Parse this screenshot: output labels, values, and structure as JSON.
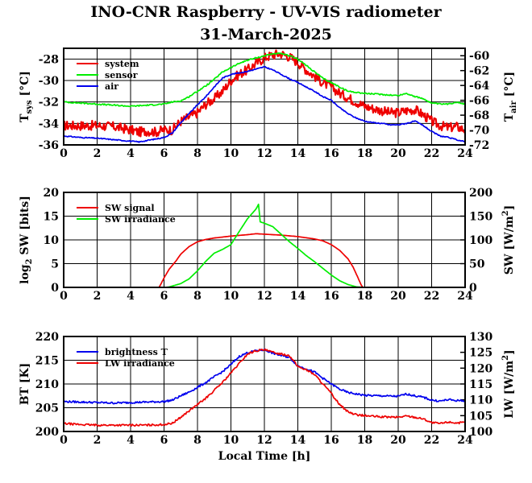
{
  "title": "INO-CNR Raspberry - UV-VIS radiometer",
  "date": "31-March-2025",
  "xlabel": "Local Time [h]",
  "x_ticks": [
    "0",
    "2",
    "4",
    "6",
    "8",
    "10",
    "12",
    "14",
    "16",
    "18",
    "20",
    "22",
    "24"
  ],
  "chart_data": [
    {
      "type": "line",
      "panel": "temperatures",
      "ylabel_left": {
        "main": "T",
        "sub": "sys",
        "unit": " [°C]"
      },
      "ylabel_right": {
        "main": "T",
        "sub": "air",
        "unit": " [°C]"
      },
      "xlim": [
        0,
        24
      ],
      "ylim_left": [
        -36,
        -27
      ],
      "ylim_right": [
        -72,
        -59
      ],
      "yticks_left": [
        "-28",
        "-30",
        "-32",
        "-34",
        "-36"
      ],
      "yticks_right": [
        "-60",
        "-62",
        "-64",
        "-66",
        "-68",
        "-70",
        "-72"
      ],
      "grid": true,
      "legend": "top-left",
      "series": [
        {
          "name": "system",
          "color": "#ee0000",
          "axis": "left",
          "noise": 0.45,
          "x": [
            0,
            1,
            2,
            3,
            4,
            4.5,
            5,
            5.5,
            6,
            6.5,
            7,
            7.5,
            8,
            8.5,
            9,
            9.5,
            10,
            10.5,
            11,
            11.5,
            12,
            12.5,
            13,
            13.5,
            14,
            14.5,
            15,
            15.5,
            16,
            16.5,
            17,
            17.5,
            18,
            18.5,
            19,
            19.5,
            20,
            20.5,
            21,
            21.5,
            22,
            22.5,
            23,
            23.5,
            24
          ],
          "y": [
            -34.2,
            -34.2,
            -34.2,
            -34.3,
            -34.6,
            -34.8,
            -34.7,
            -34.8,
            -34.6,
            -34.6,
            -33.8,
            -33.4,
            -33.0,
            -32.2,
            -31.7,
            -31.0,
            -30.0,
            -29.4,
            -29.0,
            -28.4,
            -27.9,
            -27.6,
            -27.5,
            -27.8,
            -28.3,
            -29.0,
            -29.6,
            -30.2,
            -30.6,
            -31.2,
            -31.6,
            -32.0,
            -32.4,
            -32.6,
            -32.8,
            -33.0,
            -33.0,
            -32.8,
            -32.7,
            -33.2,
            -33.8,
            -34.2,
            -34.4,
            -34.3,
            -34.6
          ]
        },
        {
          "name": "sensor",
          "color": "#00ee00",
          "axis": "left",
          "noise": 0.06,
          "x": [
            0,
            1,
            2,
            3,
            4,
            5,
            6,
            6.5,
            7,
            7.5,
            8,
            8.5,
            9,
            9.5,
            10,
            10.5,
            11,
            11.5,
            12,
            12.5,
            13,
            13.5,
            14,
            14.5,
            15,
            15.5,
            16,
            16.5,
            17,
            17.5,
            18,
            19,
            20,
            20.5,
            21,
            21.5,
            22,
            22.5,
            23,
            23.5,
            24
          ],
          "y": [
            -32.0,
            -32.1,
            -32.2,
            -32.3,
            -32.4,
            -32.3,
            -32.2,
            -32.0,
            -31.9,
            -31.5,
            -31.0,
            -30.5,
            -29.9,
            -29.2,
            -28.8,
            -28.4,
            -28.1,
            -27.9,
            -27.7,
            -27.5,
            -27.5,
            -27.7,
            -28.0,
            -28.6,
            -29.2,
            -29.8,
            -30.2,
            -30.6,
            -31.0,
            -31.1,
            -31.2,
            -31.3,
            -31.4,
            -31.2,
            -31.5,
            -31.7,
            -32.1,
            -32.2,
            -32.2,
            -32.0,
            -32.2
          ]
        },
        {
          "name": "air",
          "color": "#0000ee",
          "axis": "right",
          "noise": 0.07,
          "x": [
            0,
            1,
            2,
            3,
            4,
            4.5,
            5,
            5.5,
            6,
            6.5,
            7,
            7.5,
            8,
            8.5,
            9,
            9.5,
            10,
            10.5,
            11,
            11.5,
            12,
            12.5,
            13,
            13.5,
            14,
            14.5,
            15,
            15.5,
            16,
            16.5,
            17,
            17.5,
            18,
            18.5,
            19,
            19.5,
            20,
            20.5,
            21,
            21.5,
            22,
            22.5,
            23,
            23.5,
            24
          ],
          "y": [
            -70.8,
            -71.0,
            -71.1,
            -71.3,
            -71.5,
            -71.6,
            -71.4,
            -71.2,
            -71.0,
            -70.4,
            -69.0,
            -67.8,
            -66.6,
            -65.5,
            -64.2,
            -63.0,
            -62.5,
            -62.3,
            -62.1,
            -61.8,
            -61.5,
            -61.9,
            -62.5,
            -63.1,
            -63.6,
            -64.2,
            -64.8,
            -65.5,
            -66.0,
            -67.0,
            -67.8,
            -68.4,
            -68.8,
            -69.0,
            -69.1,
            -69.3,
            -69.3,
            -69.1,
            -68.8,
            -69.4,
            -70.2,
            -70.8,
            -71.0,
            -71.3,
            -71.6
          ]
        }
      ]
    },
    {
      "type": "line",
      "panel": "shortwave",
      "ylabel_left": {
        "main": "log",
        "sub": "2",
        "unit": " SW [bits]"
      },
      "ylabel_right": {
        "main": "SW [W/m",
        "sup": "2",
        "unit": "]"
      },
      "xlim": [
        0,
        24
      ],
      "ylim_left": [
        0,
        20
      ],
      "ylim_right": [
        0,
        200
      ],
      "yticks_left": [
        "20",
        "15",
        "10",
        "5",
        "0"
      ],
      "yticks_right": [
        "200",
        "150",
        "100",
        "50",
        "0"
      ],
      "grid": true,
      "legend": "top-left",
      "series": [
        {
          "name": "SW signal",
          "color": "#ee0000",
          "axis": "left",
          "noise": 0,
          "x": [
            0,
            5.7,
            5.8,
            6,
            6.3,
            6.7,
            7,
            7.5,
            8,
            8.5,
            9,
            10,
            11,
            11.5,
            12,
            13,
            14,
            15,
            15.5,
            16,
            16.5,
            17,
            17.3,
            17.6,
            17.8,
            17.9,
            24
          ],
          "y": [
            0,
            0,
            0.6,
            2.0,
            3.8,
            5.5,
            7.0,
            8.6,
            9.6,
            10.1,
            10.4,
            10.8,
            11.1,
            11.3,
            11.2,
            11.0,
            10.7,
            10.2,
            9.8,
            9.0,
            7.8,
            6.0,
            4.3,
            2.0,
            0.4,
            0,
            0
          ]
        },
        {
          "name": "SW irradiance",
          "color": "#00ee00",
          "axis": "right",
          "noise": 0,
          "x": [
            0,
            6.0,
            6.3,
            7,
            7.5,
            8,
            8.5,
            9,
            9.5,
            10,
            10.5,
            11,
            11.5,
            11.65,
            11.75,
            12,
            12.5,
            13,
            13.5,
            14,
            14.5,
            15,
            15.5,
            16,
            16.5,
            17,
            17.5,
            18,
            24
          ],
          "y": [
            0,
            0,
            0.8,
            8,
            18,
            35,
            55,
            72,
            80,
            90,
            118,
            145,
            165,
            175,
            138,
            135,
            128,
            112,
            96,
            82,
            67,
            54,
            40,
            26,
            14,
            6,
            1,
            0,
            0
          ]
        }
      ]
    },
    {
      "type": "line",
      "panel": "longwave",
      "ylabel_left": {
        "main": "BT [K]"
      },
      "ylabel_right": {
        "main": "LW [W/m",
        "sup": "2",
        "unit": "]"
      },
      "xlim": [
        0,
        24
      ],
      "ylim_left": [
        200,
        220
      ],
      "ylim_right": [
        100,
        130
      ],
      "yticks_left": [
        "220",
        "215",
        "210",
        "205",
        "200"
      ],
      "yticks_right": [
        "130",
        "125",
        "120",
        "115",
        "110",
        "105",
        "100"
      ],
      "grid": true,
      "legend": "top-left",
      "series": [
        {
          "name": "brightness T",
          "color": "#0000ee",
          "axis": "left",
          "noise": 0.2,
          "x": [
            0,
            1,
            2,
            3,
            4,
            5,
            6,
            6.5,
            7,
            7.5,
            8,
            8.5,
            9,
            9.5,
            10,
            10.5,
            11,
            11.5,
            12,
            12.5,
            13,
            13.5,
            14,
            14.5,
            15,
            15.5,
            16,
            16.5,
            17,
            17.5,
            18,
            19,
            20,
            20.5,
            21,
            21.5,
            22,
            22.5,
            23,
            23.5,
            24
          ],
          "y": [
            206.3,
            206.2,
            206.1,
            206.0,
            206.1,
            206.2,
            206.3,
            206.6,
            207.5,
            208.3,
            209.3,
            210.3,
            211.5,
            212.6,
            214.1,
            215.8,
            216.6,
            217.0,
            217.2,
            216.5,
            216.0,
            215.6,
            213.8,
            213.2,
            212.5,
            211.2,
            210.0,
            208.9,
            208.2,
            207.9,
            207.6,
            207.5,
            207.4,
            207.9,
            207.5,
            207.2,
            206.6,
            206.4,
            206.7,
            206.5,
            206.5
          ]
        },
        {
          "name": "LW irradiance",
          "color": "#ee0000",
          "axis": "right",
          "noise": 0.3,
          "x": [
            0,
            1,
            2,
            3,
            4,
            5,
            6,
            6.5,
            7,
            7.5,
            8,
            8.5,
            9,
            9.5,
            10,
            10.5,
            11,
            11.5,
            12,
            12.5,
            13,
            13.5,
            14,
            14.5,
            15,
            15.5,
            16,
            16.5,
            17,
            17.5,
            18,
            19,
            20,
            20.5,
            21,
            21.5,
            22,
            22.5,
            23,
            23.5,
            24
          ],
          "y": [
            102.5,
            102.2,
            102.0,
            102.0,
            102.0,
            102.0,
            102.2,
            102.6,
            104.5,
            106.5,
            108.5,
            110.5,
            113.0,
            115.5,
            118.5,
            121.5,
            124.5,
            125.5,
            125.8,
            125.0,
            124.5,
            124.0,
            120.5,
            119.5,
            118.0,
            115.0,
            112.0,
            108.5,
            106.2,
            105.3,
            105.0,
            104.6,
            104.5,
            104.9,
            104.5,
            104.0,
            102.8,
            102.5,
            103.0,
            102.7,
            102.8
          ]
        }
      ]
    }
  ]
}
